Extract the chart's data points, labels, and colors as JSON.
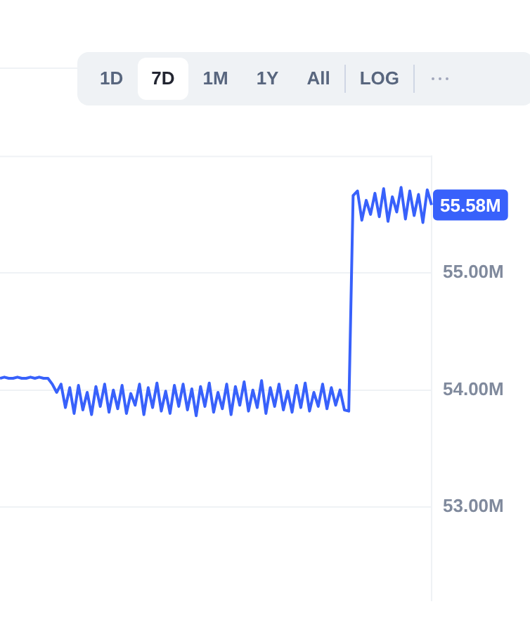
{
  "chart_data": {
    "type": "line",
    "categories": [
      null,
      null,
      null,
      null,
      null,
      null,
      null,
      null,
      null,
      null,
      null,
      null,
      null,
      null,
      null,
      null,
      null,
      null,
      null,
      null,
      null,
      null,
      null,
      null,
      null,
      null,
      null,
      null,
      null,
      null,
      null,
      null,
      null,
      null,
      null,
      null,
      null,
      null,
      null,
      null,
      null,
      null,
      null,
      null,
      null,
      null,
      null,
      null,
      null,
      null,
      null,
      null,
      null,
      null,
      null,
      null,
      null,
      null,
      null,
      null,
      null,
      null,
      null,
      null,
      null,
      null,
      null,
      null,
      null,
      null,
      null,
      null,
      null,
      null,
      null,
      null,
      null,
      null,
      null,
      null,
      null,
      null,
      null,
      null,
      null,
      null,
      null,
      null,
      null,
      null,
      null,
      null,
      null,
      null,
      null,
      null,
      null,
      null,
      null,
      null
    ],
    "series": [
      {
        "color": "#3861fb",
        "values": [
          54.1,
          54.11,
          54.1,
          54.1,
          54.11,
          54.1,
          54.1,
          54.11,
          54.1,
          54.11,
          54.1,
          54.1,
          54.05,
          53.98,
          54.05,
          53.85,
          54.02,
          53.8,
          54.04,
          53.83,
          53.98,
          53.79,
          54.03,
          53.86,
          54.05,
          53.81,
          54.0,
          53.84,
          54.04,
          53.8,
          53.97,
          53.87,
          54.05,
          53.79,
          54.02,
          53.85,
          54.06,
          53.82,
          53.99,
          53.8,
          54.04,
          53.86,
          54.05,
          53.83,
          54.01,
          53.78,
          54.03,
          53.86,
          54.06,
          53.81,
          53.98,
          53.84,
          54.05,
          53.79,
          54.03,
          53.87,
          54.07,
          53.82,
          54.0,
          53.85,
          54.08,
          53.8,
          54.02,
          53.86,
          54.05,
          53.83,
          53.99,
          53.81,
          54.04,
          53.85,
          54.06,
          53.82,
          53.98,
          53.86,
          54.05,
          53.84,
          54.02,
          53.87,
          54.0,
          53.83,
          53.82,
          55.66,
          55.7,
          55.45,
          55.62,
          55.5,
          55.68,
          55.48,
          55.72,
          55.44,
          55.65,
          55.52,
          55.73,
          55.46,
          55.7,
          55.49,
          55.67,
          55.43,
          55.71,
          55.58
        ]
      }
    ],
    "ylim": [
      52.2,
      56.0
    ],
    "yticks": [
      {
        "value": 53,
        "label": "53.00M"
      },
      {
        "value": 54,
        "label": "54.00M"
      },
      {
        "value": 55,
        "label": "55.00M"
      }
    ],
    "grid": "y",
    "legend": false,
    "marker": "none",
    "line_style": "solid",
    "tick_labels": "y",
    "annotations": [
      "55.58M",
      "1D",
      "7D",
      "1M",
      "1Y",
      "All",
      "LOG"
    ]
  }
}
